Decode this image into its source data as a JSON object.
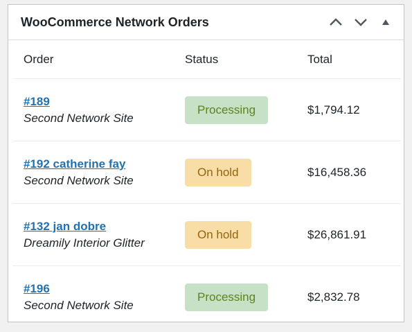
{
  "widget": {
    "title": "WooCommerce Network Orders",
    "controls": [
      "move-up",
      "move-down",
      "toggle-collapse"
    ]
  },
  "table": {
    "headers": {
      "order": "Order",
      "status": "Status",
      "total": "Total"
    },
    "rows": [
      {
        "order": "#189",
        "site": "Second Network Site",
        "status": "Processing",
        "status_type": "processing",
        "total": "$1,794.12"
      },
      {
        "order": "#192 catherine fay",
        "site": "Second Network Site",
        "status": "On hold",
        "status_type": "onhold",
        "total": "$16,458.36"
      },
      {
        "order": "#132 jan dobre",
        "site": "Dreamily Interior Glitter",
        "status": "On hold",
        "status_type": "onhold",
        "total": "$26,861.91"
      },
      {
        "order": "#196",
        "site": "Second Network Site",
        "status": "Processing",
        "status_type": "processing",
        "total": "$2,832.78"
      }
    ]
  },
  "colors": {
    "link": "#2271b1",
    "processing_bg": "#c6e1c6",
    "processing_text": "#5b841b",
    "onhold_bg": "#f8dda7",
    "onhold_text": "#94660c"
  }
}
